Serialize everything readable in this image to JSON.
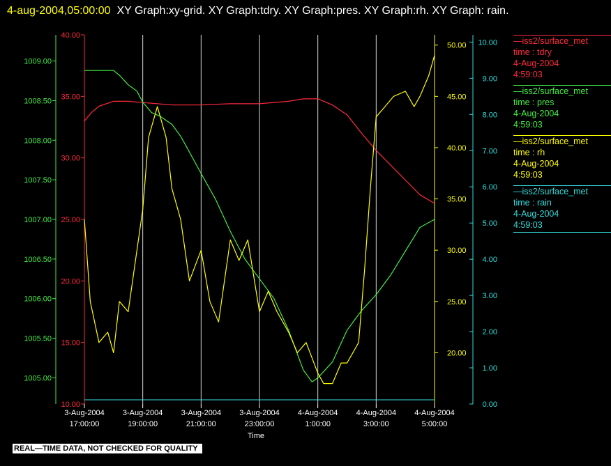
{
  "header": {
    "timestamp": "4-aug-2004,05:00:00",
    "graphs": "XY Graph:xy-grid.  XY Graph:tdry.  XY Graph:pres.  XY Graph:rh.  XY Graph: rain."
  },
  "colors": {
    "tdry": "#ff2a3c",
    "pres": "#44ee44",
    "rh": "#ffff00",
    "rain": "#33dddd",
    "grid": "#ffffff"
  },
  "legend": [
    {
      "name": "iss2/surface_met",
      "label": "time : tdry",
      "date": "4-Aug-2004",
      "time": "4:59:03",
      "color": "#ff2a3c"
    },
    {
      "name": "iss2/surface_met",
      "label": "time : pres",
      "date": "4-Aug-2004",
      "time": "4:59:03",
      "color": "#44ee44"
    },
    {
      "name": "iss2/surface_met",
      "label": "time : rh",
      "date": "4-Aug-2004",
      "time": "4:59:03",
      "color": "#ffff00"
    },
    {
      "name": "iss2/surface_met",
      "label": "time : rain",
      "date": "4-Aug-2004",
      "time": "4:59:03",
      "color": "#33dddd"
    }
  ],
  "footer": "REAL—TIME DATA, NOT CHECKED FOR QUALITY",
  "chart_data": {
    "type": "line",
    "xlabel": "Time",
    "x_ticks": [
      [
        "3-Aug-2004",
        "17:00:00"
      ],
      [
        "3-Aug-2004",
        "19:00:00"
      ],
      [
        "3-Aug-2004",
        "21:00:00"
      ],
      [
        "3-Aug-2004",
        "23:00:00"
      ],
      [
        "4-Aug-2004",
        "1:00:00"
      ],
      [
        "4-Aug-2004",
        "3:00:00"
      ],
      [
        "4-Aug-2004",
        "5:00:00"
      ]
    ],
    "x_range_hours": [
      0,
      12
    ],
    "grid": "vertical",
    "axes": {
      "tdry": {
        "range": [
          10,
          40
        ],
        "ticks": [
          "10.00",
          "15.00",
          "20.00",
          "25.00",
          "30.00",
          "35.00",
          "40.00"
        ],
        "tick_values": [
          10,
          15,
          20,
          25,
          30,
          35,
          40
        ]
      },
      "pres": {
        "range": [
          1004.67,
          1009.33
        ],
        "ticks": [
          "1005.00",
          "1005.50",
          "1006.00",
          "1006.50",
          "1007.00",
          "1007.50",
          "1008.00",
          "1008.50",
          "1009.00"
        ],
        "tick_values": [
          1005.0,
          1005.5,
          1006.0,
          1006.5,
          1007.0,
          1007.5,
          1008.0,
          1008.5,
          1009.0
        ]
      },
      "rh": {
        "range": [
          15,
          51
        ],
        "ticks": [
          "20.00",
          "25.00",
          "30.00",
          "35.00",
          "40.00",
          "45.00",
          "50.00"
        ],
        "tick_values": [
          20,
          25,
          30,
          35,
          40,
          45,
          50
        ]
      },
      "rain": {
        "range": [
          0,
          10.2
        ],
        "ticks": [
          "0.00",
          "1.00",
          "2.00",
          "3.00",
          "4.00",
          "5.00",
          "6.00",
          "7.00",
          "8.00",
          "9.00",
          "10.00"
        ],
        "tick_values": [
          0,
          1,
          2,
          3,
          4,
          5,
          6,
          7,
          8,
          9,
          10
        ]
      }
    },
    "series": [
      {
        "key": "tdry",
        "x": [
          0,
          0.25,
          0.5,
          1,
          1.5,
          2,
          2.5,
          3,
          4,
          5,
          6,
          7,
          7.5,
          8,
          8.5,
          9,
          9.5,
          10,
          10.5,
          11,
          11.5,
          12
        ],
        "y": [
          33.0,
          33.7,
          34.2,
          34.6,
          34.6,
          34.5,
          34.4,
          34.3,
          34.3,
          34.4,
          34.4,
          34.6,
          34.8,
          34.8,
          34.3,
          33.5,
          32.0,
          30.6,
          29.4,
          28.2,
          27.0,
          26.3
        ]
      },
      {
        "key": "pres",
        "x": [
          0,
          0.5,
          1,
          1.2,
          1.5,
          1.8,
          2,
          2.3,
          2.6,
          3,
          3.3,
          3.6,
          4,
          4.5,
          5,
          5.5,
          6,
          6.5,
          7,
          7.5,
          7.8,
          8,
          8.5,
          9,
          9.5,
          10,
          10.5,
          11,
          11.5,
          12
        ],
        "y": [
          1008.88,
          1008.88,
          1008.88,
          1008.82,
          1008.7,
          1008.62,
          1008.48,
          1008.35,
          1008.3,
          1008.2,
          1008.05,
          1007.85,
          1007.58,
          1007.25,
          1006.85,
          1006.5,
          1006.25,
          1006.0,
          1005.6,
          1005.1,
          1004.95,
          1005.0,
          1005.2,
          1005.6,
          1005.85,
          1006.05,
          1006.3,
          1006.6,
          1006.9,
          1007.0
        ]
      },
      {
        "key": "rh",
        "x": [
          0,
          0.2,
          0.5,
          0.8,
          1,
          1.2,
          1.5,
          2,
          2.2,
          2.5,
          2.8,
          3,
          3.3,
          3.6,
          4,
          4.3,
          4.6,
          5,
          5.3,
          5.6,
          6,
          6.3,
          6.6,
          7,
          7.3,
          7.6,
          8,
          8.2,
          8.5,
          8.8,
          9,
          9.2,
          9.4,
          9.6,
          9.8,
          10,
          10.3,
          10.6,
          11,
          11.3,
          11.5,
          11.8,
          12
        ],
        "y": [
          33,
          25,
          21,
          22,
          20,
          25,
          24,
          34,
          41,
          44,
          41,
          36,
          33,
          27,
          30,
          25,
          23,
          31,
          29,
          31,
          24,
          26,
          24,
          22,
          20,
          21,
          18,
          17,
          17,
          19,
          19,
          20,
          21,
          28,
          36,
          43,
          44,
          45,
          45.5,
          44,
          45,
          47,
          49
        ]
      },
      {
        "key": "rain",
        "x": [
          0,
          12
        ],
        "y": [
          0,
          0
        ]
      }
    ]
  }
}
